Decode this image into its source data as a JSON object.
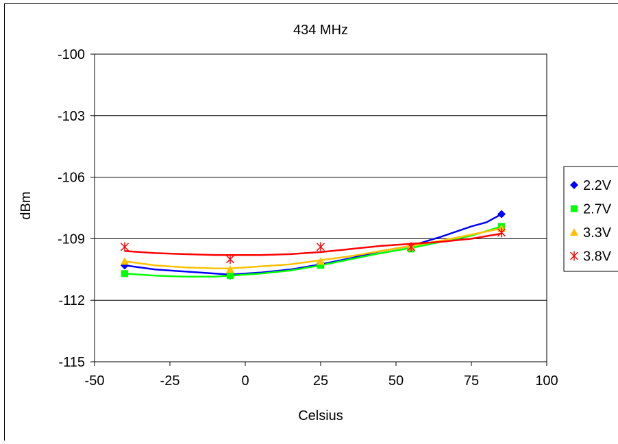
{
  "chart_data": {
    "type": "line",
    "title": "434 MHz",
    "xlabel": "Celsius",
    "ylabel": "dBm",
    "xlim": [
      -50,
      100
    ],
    "ylim": [
      -115,
      -100
    ],
    "xticks": [
      -50,
      -25,
      0,
      25,
      50,
      75,
      100
    ],
    "yticks": [
      -100,
      -103,
      -106,
      -109,
      -112,
      -115
    ],
    "grid": "horizontal",
    "legend_position": "right",
    "series": [
      {
        "name": "2.2V",
        "color": "#0000FF",
        "marker": "diamond",
        "x": [
          -40,
          -5,
          25,
          55,
          85
        ],
        "y": [
          -110.3,
          -110.8,
          -110.2,
          -109.3,
          -107.8
        ],
        "curve": [
          [
            -40,
            -110.3
          ],
          [
            -30,
            -110.5
          ],
          [
            -20,
            -110.6
          ],
          [
            -10,
            -110.7
          ],
          [
            -5,
            -110.75
          ],
          [
            5,
            -110.65
          ],
          [
            15,
            -110.5
          ],
          [
            25,
            -110.25
          ],
          [
            35,
            -109.95
          ],
          [
            45,
            -109.6
          ],
          [
            55,
            -109.35
          ],
          [
            65,
            -108.9
          ],
          [
            75,
            -108.4
          ],
          [
            80,
            -108.2
          ],
          [
            85,
            -107.8
          ]
        ],
        "marker_points": [
          [
            -40,
            -110.3
          ],
          [
            -5,
            -110.8
          ],
          [
            25,
            -110.2
          ],
          [
            55,
            -109.4
          ],
          [
            85,
            -107.8
          ]
        ]
      },
      {
        "name": "2.7V",
        "color": "#00FF00",
        "marker": "square",
        "x": [
          -40,
          -5,
          25,
          55,
          85
        ],
        "y": [
          -110.7,
          -110.8,
          -110.3,
          -109.4,
          -108.4
        ],
        "curve": [
          [
            -40,
            -110.7
          ],
          [
            -30,
            -110.8
          ],
          [
            -20,
            -110.85
          ],
          [
            -10,
            -110.85
          ],
          [
            -5,
            -110.8
          ],
          [
            5,
            -110.7
          ],
          [
            15,
            -110.55
          ],
          [
            25,
            -110.3
          ],
          [
            35,
            -110.0
          ],
          [
            45,
            -109.7
          ],
          [
            55,
            -109.45
          ],
          [
            65,
            -109.15
          ],
          [
            75,
            -108.85
          ],
          [
            85,
            -108.4
          ]
        ],
        "marker_points": [
          [
            -40,
            -110.7
          ],
          [
            -5,
            -110.8
          ],
          [
            25,
            -110.3
          ],
          [
            55,
            -109.5
          ],
          [
            85,
            -108.4
          ]
        ]
      },
      {
        "name": "3.3V",
        "color": "#FFC000",
        "marker": "triangle",
        "x": [
          -40,
          -5,
          25,
          55,
          85
        ],
        "y": [
          -110.1,
          -110.5,
          -110.1,
          -109.4,
          -108.5
        ],
        "curve": [
          [
            -40,
            -110.1
          ],
          [
            -30,
            -110.3
          ],
          [
            -20,
            -110.4
          ],
          [
            -10,
            -110.45
          ],
          [
            -5,
            -110.45
          ],
          [
            5,
            -110.35
          ],
          [
            15,
            -110.25
          ],
          [
            25,
            -110.05
          ],
          [
            35,
            -109.85
          ],
          [
            45,
            -109.6
          ],
          [
            55,
            -109.35
          ],
          [
            65,
            -109.1
          ],
          [
            75,
            -108.8
          ],
          [
            85,
            -108.5
          ]
        ],
        "marker_points": [
          [
            -40,
            -110.1
          ],
          [
            -5,
            -110.5
          ],
          [
            25,
            -110.1
          ],
          [
            55,
            -109.4
          ],
          [
            85,
            -108.5
          ]
        ]
      },
      {
        "name": "3.8V",
        "color": "#FF0000",
        "marker": "star",
        "x": [
          -40,
          -5,
          25,
          55,
          85
        ],
        "y": [
          -109.4,
          -110.0,
          -109.4,
          -109.4,
          -108.7
        ],
        "curve": [
          [
            -40,
            -109.6
          ],
          [
            -30,
            -109.7
          ],
          [
            -20,
            -109.75
          ],
          [
            -10,
            -109.8
          ],
          [
            -5,
            -109.8
          ],
          [
            5,
            -109.8
          ],
          [
            15,
            -109.75
          ],
          [
            25,
            -109.65
          ],
          [
            35,
            -109.5
          ],
          [
            45,
            -109.35
          ],
          [
            55,
            -109.25
          ],
          [
            65,
            -109.15
          ],
          [
            75,
            -109.0
          ],
          [
            85,
            -108.75
          ]
        ],
        "marker_points": [
          [
            -40,
            -109.4
          ],
          [
            -5,
            -110.0
          ],
          [
            25,
            -109.4
          ],
          [
            55,
            -109.4
          ],
          [
            85,
            -108.7
          ]
        ]
      }
    ]
  }
}
